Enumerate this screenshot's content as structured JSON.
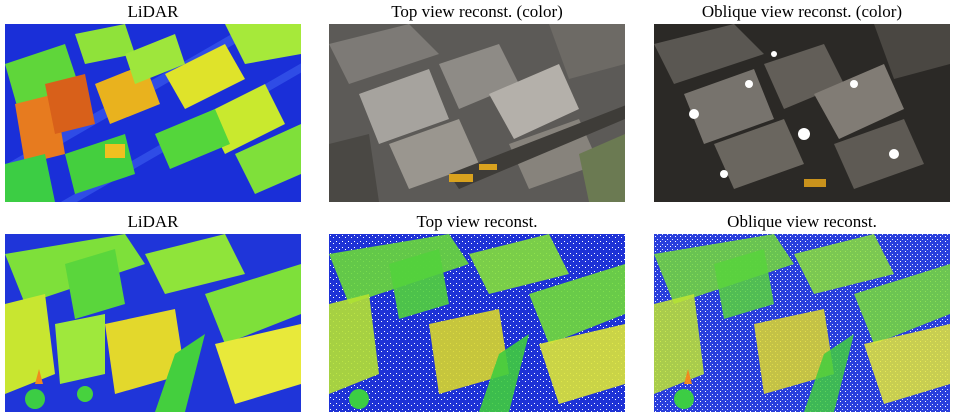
{
  "figure": {
    "panels": [
      {
        "caption": "LiDAR",
        "kind": "lidar-top"
      },
      {
        "caption": "Top view reconst. (color)",
        "kind": "color-top"
      },
      {
        "caption": "Oblique view reconst. (color)",
        "kind": "color-oblique"
      },
      {
        "caption": "LiDAR",
        "kind": "lidar-oblique"
      },
      {
        "caption": "Top view reconst.",
        "kind": "recon-top"
      },
      {
        "caption": "Oblique view reconst.",
        "kind": "recon-oblique"
      }
    ]
  }
}
